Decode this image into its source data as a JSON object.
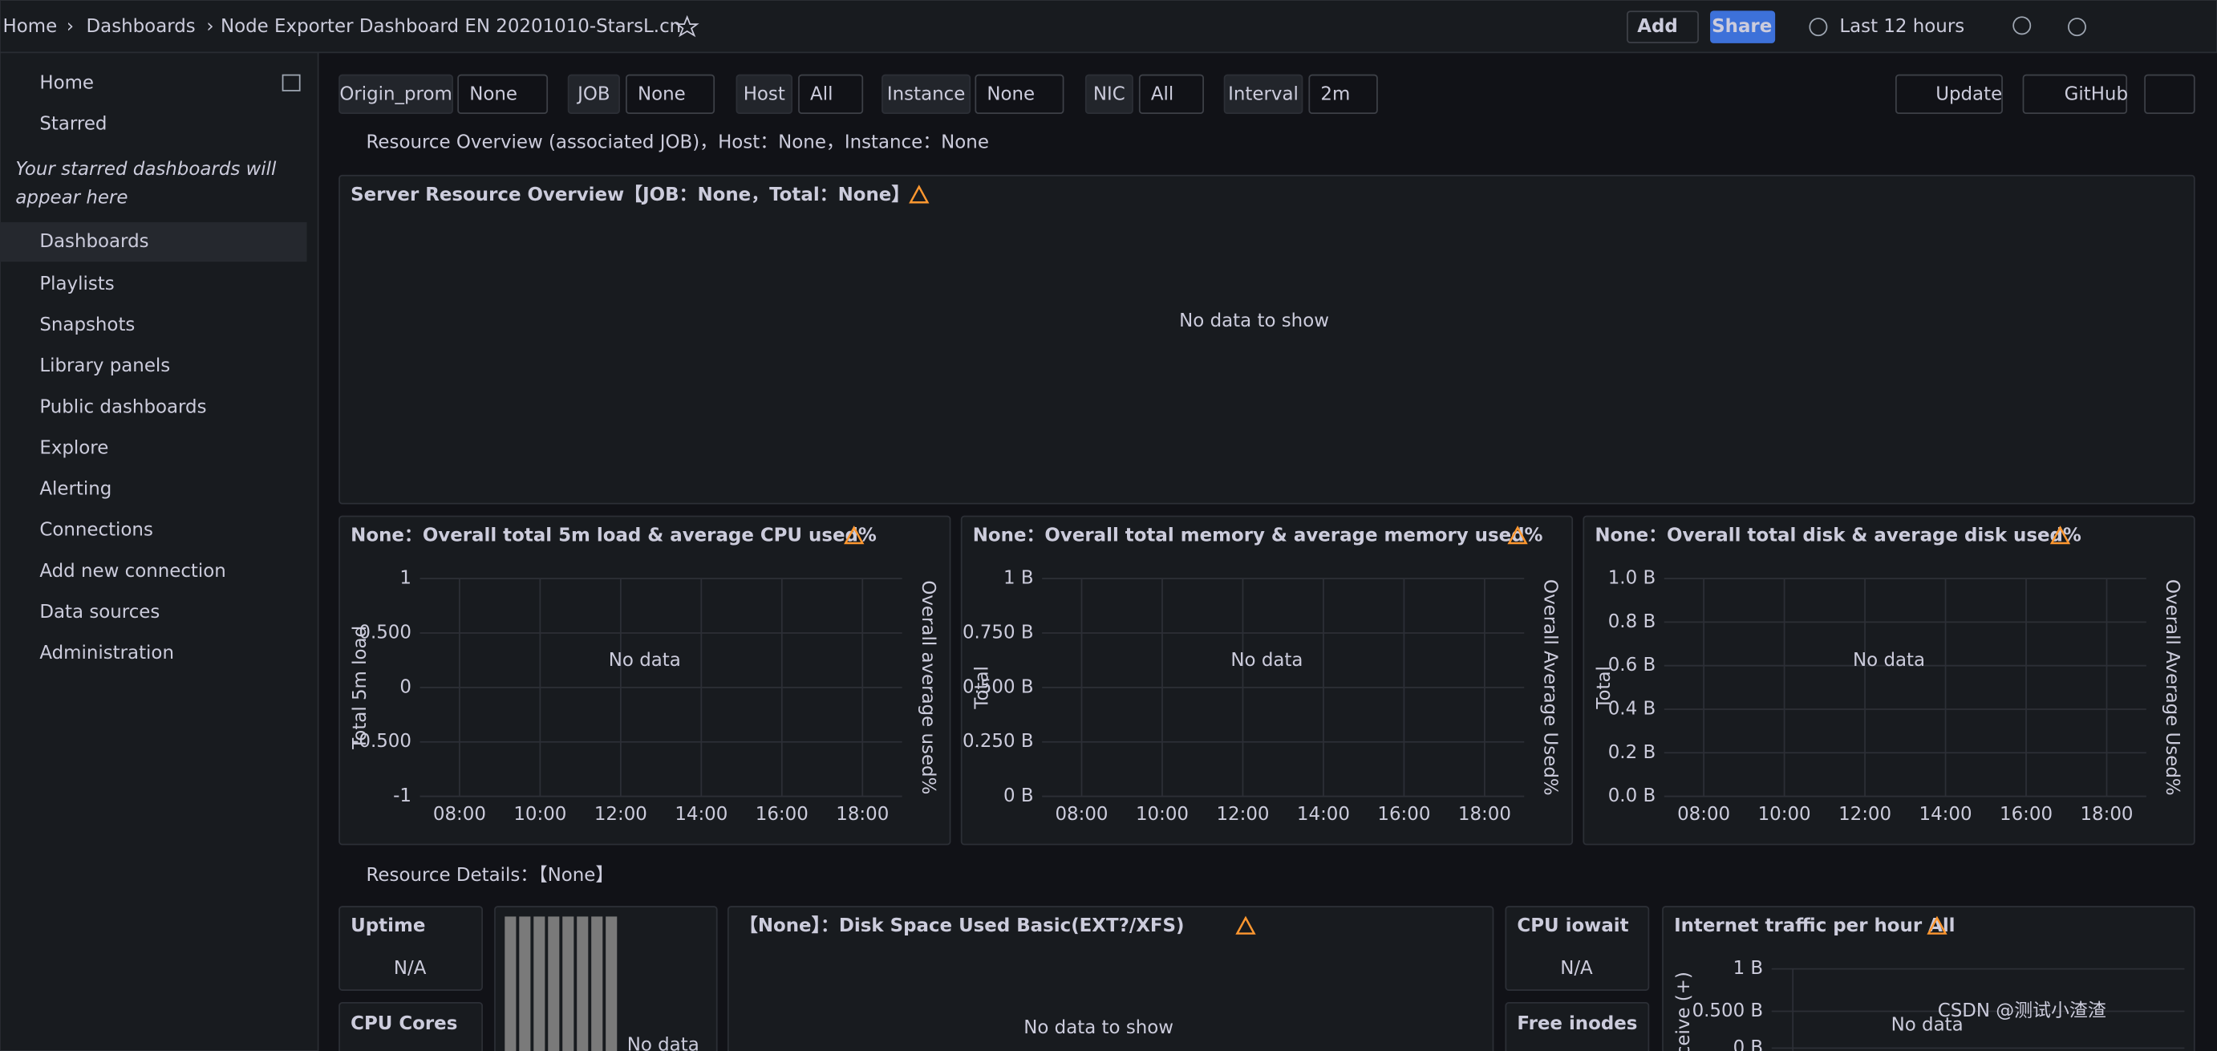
{
  "topbar": {
    "breadcrumbs": [
      "Home",
      "Dashboards",
      "Node Exporter Dashboard EN 20201010-StarsL.cn"
    ],
    "add": "Add",
    "share": "Share",
    "time_range": "Last 12 hours"
  },
  "sidebar": {
    "items": [
      "Home",
      "Starred"
    ],
    "starred_note": [
      "Your starred dashboards will",
      "appear here"
    ],
    "dashboards": "Dashboards",
    "sub_items": [
      "Playlists",
      "Snapshots",
      "Library panels",
      "Public dashboards"
    ],
    "more_items": [
      "Explore",
      "Alerting",
      "Connections"
    ],
    "connection_items": [
      "Add new connection",
      "Data sources"
    ],
    "admin": "Administration"
  },
  "variables": [
    {
      "label": "Origin_prom",
      "value": "None"
    },
    {
      "label": "JOB",
      "value": "None"
    },
    {
      "label": "Host",
      "value": "All"
    },
    {
      "label": "Instance",
      "value": "None"
    },
    {
      "label": "NIC",
      "value": "All"
    },
    {
      "label": "Interval",
      "value": "2m"
    }
  ],
  "buttons": [
    "Update",
    "GitHub"
  ],
  "rows": [
    "Resource Overview (associated JOB)，Host：None，Instance：None",
    "Resource Details：【None】"
  ],
  "overview_panel": {
    "title": "Server Resource Overview【JOB：None，Total：None】",
    "message": "No data to show"
  },
  "charts": [
    {
      "title": "None：Overall total 5m load & average CPU used%",
      "y_label": "Total 5m load",
      "y2_label": "Overall average used%",
      "yticks": [
        "1",
        "0.500",
        "0",
        "-0.500",
        "-1"
      ],
      "xticks": [
        "08:00",
        "10:00",
        "12:00",
        "14:00",
        "16:00",
        "18:00"
      ],
      "message": "No data"
    },
    {
      "title": "None：Overall total memory & average memory used%",
      "y_label": "Total",
      "y2_label": "Overall Average Used%",
      "yticks": [
        "1 B",
        "0.750 B",
        "0.500 B",
        "0.250 B",
        "0 B"
      ],
      "xticks": [
        "08:00",
        "10:00",
        "12:00",
        "14:00",
        "16:00",
        "18:00"
      ],
      "message": "No data"
    },
    {
      "title": "None：Overall total disk & average disk used%",
      "y_label": "Total",
      "y2_label": "Overall Average Used%",
      "yticks": [
        "1.0 B",
        "0.8 B",
        "0.6 B",
        "0.4 B",
        "0.2 B",
        "0.0 B"
      ],
      "xticks": [
        "08:00",
        "10:00",
        "12:00",
        "14:00",
        "16:00",
        "18:00"
      ],
      "message": "No data"
    }
  ],
  "details": {
    "uptime": {
      "title": "Uptime",
      "value": "N/A"
    },
    "cpu_cores": {
      "title": "CPU Cores"
    },
    "bar_gauge": {
      "message": "No data"
    },
    "disk_space": {
      "title": "【None】：Disk Space Used Basic(EXT?/XFS)",
      "message": "No data to show"
    },
    "cpu_iowait": {
      "title": "CPU iowait",
      "value": "N/A"
    },
    "free_inodes": {
      "title": "Free inodes"
    },
    "traffic": {
      "title": "Internet traffic per hour All",
      "y_label": "Receive (+)",
      "yticks": [
        "1 B",
        "0.500 B",
        "0 B"
      ],
      "message": "No data"
    }
  },
  "watermark": "CSDN @测试小渣渣"
}
